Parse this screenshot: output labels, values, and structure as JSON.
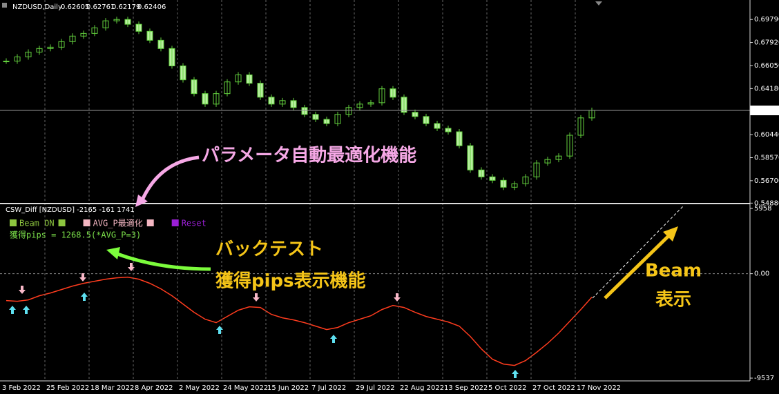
{
  "header": {
    "symbol": "NZDUSD,Daily",
    "ohlc": [
      "0.62605",
      "0.62761",
      "0.62179",
      "0.62406"
    ]
  },
  "chart_data": [
    {
      "type": "candle",
      "color": "#63d13e",
      "values": [
        0.6641,
        0.6675,
        0.6714,
        0.6743,
        0.6754,
        0.6799,
        0.6844,
        0.6866,
        0.6911,
        0.6968,
        0.6979,
        0.694,
        0.6883,
        0.681,
        0.6743,
        0.6602,
        0.6489,
        0.6377,
        0.6292,
        0.6377,
        0.6472,
        0.6529,
        0.6461,
        0.6348,
        0.6292,
        0.632,
        0.6264,
        0.6208,
        0.6168,
        0.6134,
        0.6208,
        0.6264,
        0.6292,
        0.6303,
        0.6416,
        0.6348,
        0.6225,
        0.6191,
        0.6134,
        0.6095,
        0.6067,
        0.5954,
        0.5757,
        0.5701,
        0.5673,
        0.5617,
        0.5645,
        0.5701,
        0.5814,
        0.5842,
        0.587,
        0.6039,
        0.618,
        0.6241
      ],
      "ylim": [
        0.549,
        0.7137
      ],
      "yticks": [
        {
          "value": 0.6979,
          "label": "0.69790"
        },
        {
          "value": 0.6792,
          "label": "0.67920"
        },
        {
          "value": 0.6605,
          "label": "0.66050"
        },
        {
          "value": 0.6418,
          "label": "0.64180"
        },
        {
          "value": 0.6044,
          "label": "0.60440"
        },
        {
          "value": 0.5857,
          "label": "0.58570"
        },
        {
          "value": 0.567,
          "label": "0.56700"
        },
        {
          "value": 0.5488,
          "label": "0.54880"
        }
      ],
      "current": {
        "value": 0.62406,
        "label": "0.62406"
      }
    },
    {
      "type": "line",
      "title": "CSW_Diff [NZDUSD] -2165 -161 1741",
      "color": "#ff3c1e",
      "values": [
        -2457,
        -2520,
        -2394,
        -2016,
        -1764,
        -1449,
        -1134,
        -882,
        -693,
        -504,
        -378,
        -315,
        -504,
        -882,
        -1386,
        -2016,
        -2772,
        -3528,
        -4158,
        -4473,
        -3906,
        -3339,
        -3024,
        -3087,
        -3717,
        -4032,
        -4221,
        -4473,
        -4788,
        -5103,
        -4914,
        -4473,
        -4158,
        -3843,
        -3276,
        -2898,
        -3087,
        -3528,
        -3906,
        -4158,
        -4410,
        -4788,
        -5733,
        -6867,
        -7812,
        -8253,
        -8379,
        -7938,
        -7182,
        -6363,
        -5418,
        -4347,
        -3276,
        -2142
      ],
      "ylim": [
        -9790,
        6340
      ],
      "yticks": [
        5958,
        {
          "value": 0,
          "label": "0.00"
        },
        -9537
      ]
    }
  ],
  "dates": [
    "3 Feb 2022",
    "25 Feb 2022",
    "18 Mar 2022",
    "8 Apr 2022",
    "2 May 2022",
    "24 May 2022",
    "15 Jun 2022",
    "7 Jul 2022",
    "29 Jul 2022",
    "22 Aug 2022",
    "13 Sep 2022",
    "5 Oct 2022",
    "27 Oct 2022",
    "17 Nov 2022"
  ],
  "buttons": [
    {
      "label": "Beam ON",
      "color": "#8dc63f"
    },
    {
      "label": "AVG_P最適化",
      "color": "#f4b6c2"
    },
    {
      "label": "Reset",
      "color": "#9b1fd6"
    }
  ],
  "result": "獲得pips = 1268.5(*AVG_P=3)",
  "annotations": {
    "optimize": "パラメータ自動最適化機能",
    "backtest": [
      "バックテスト",
      "獲得pips表示機能"
    ],
    "beam": [
      "Beam",
      "表示"
    ]
  }
}
